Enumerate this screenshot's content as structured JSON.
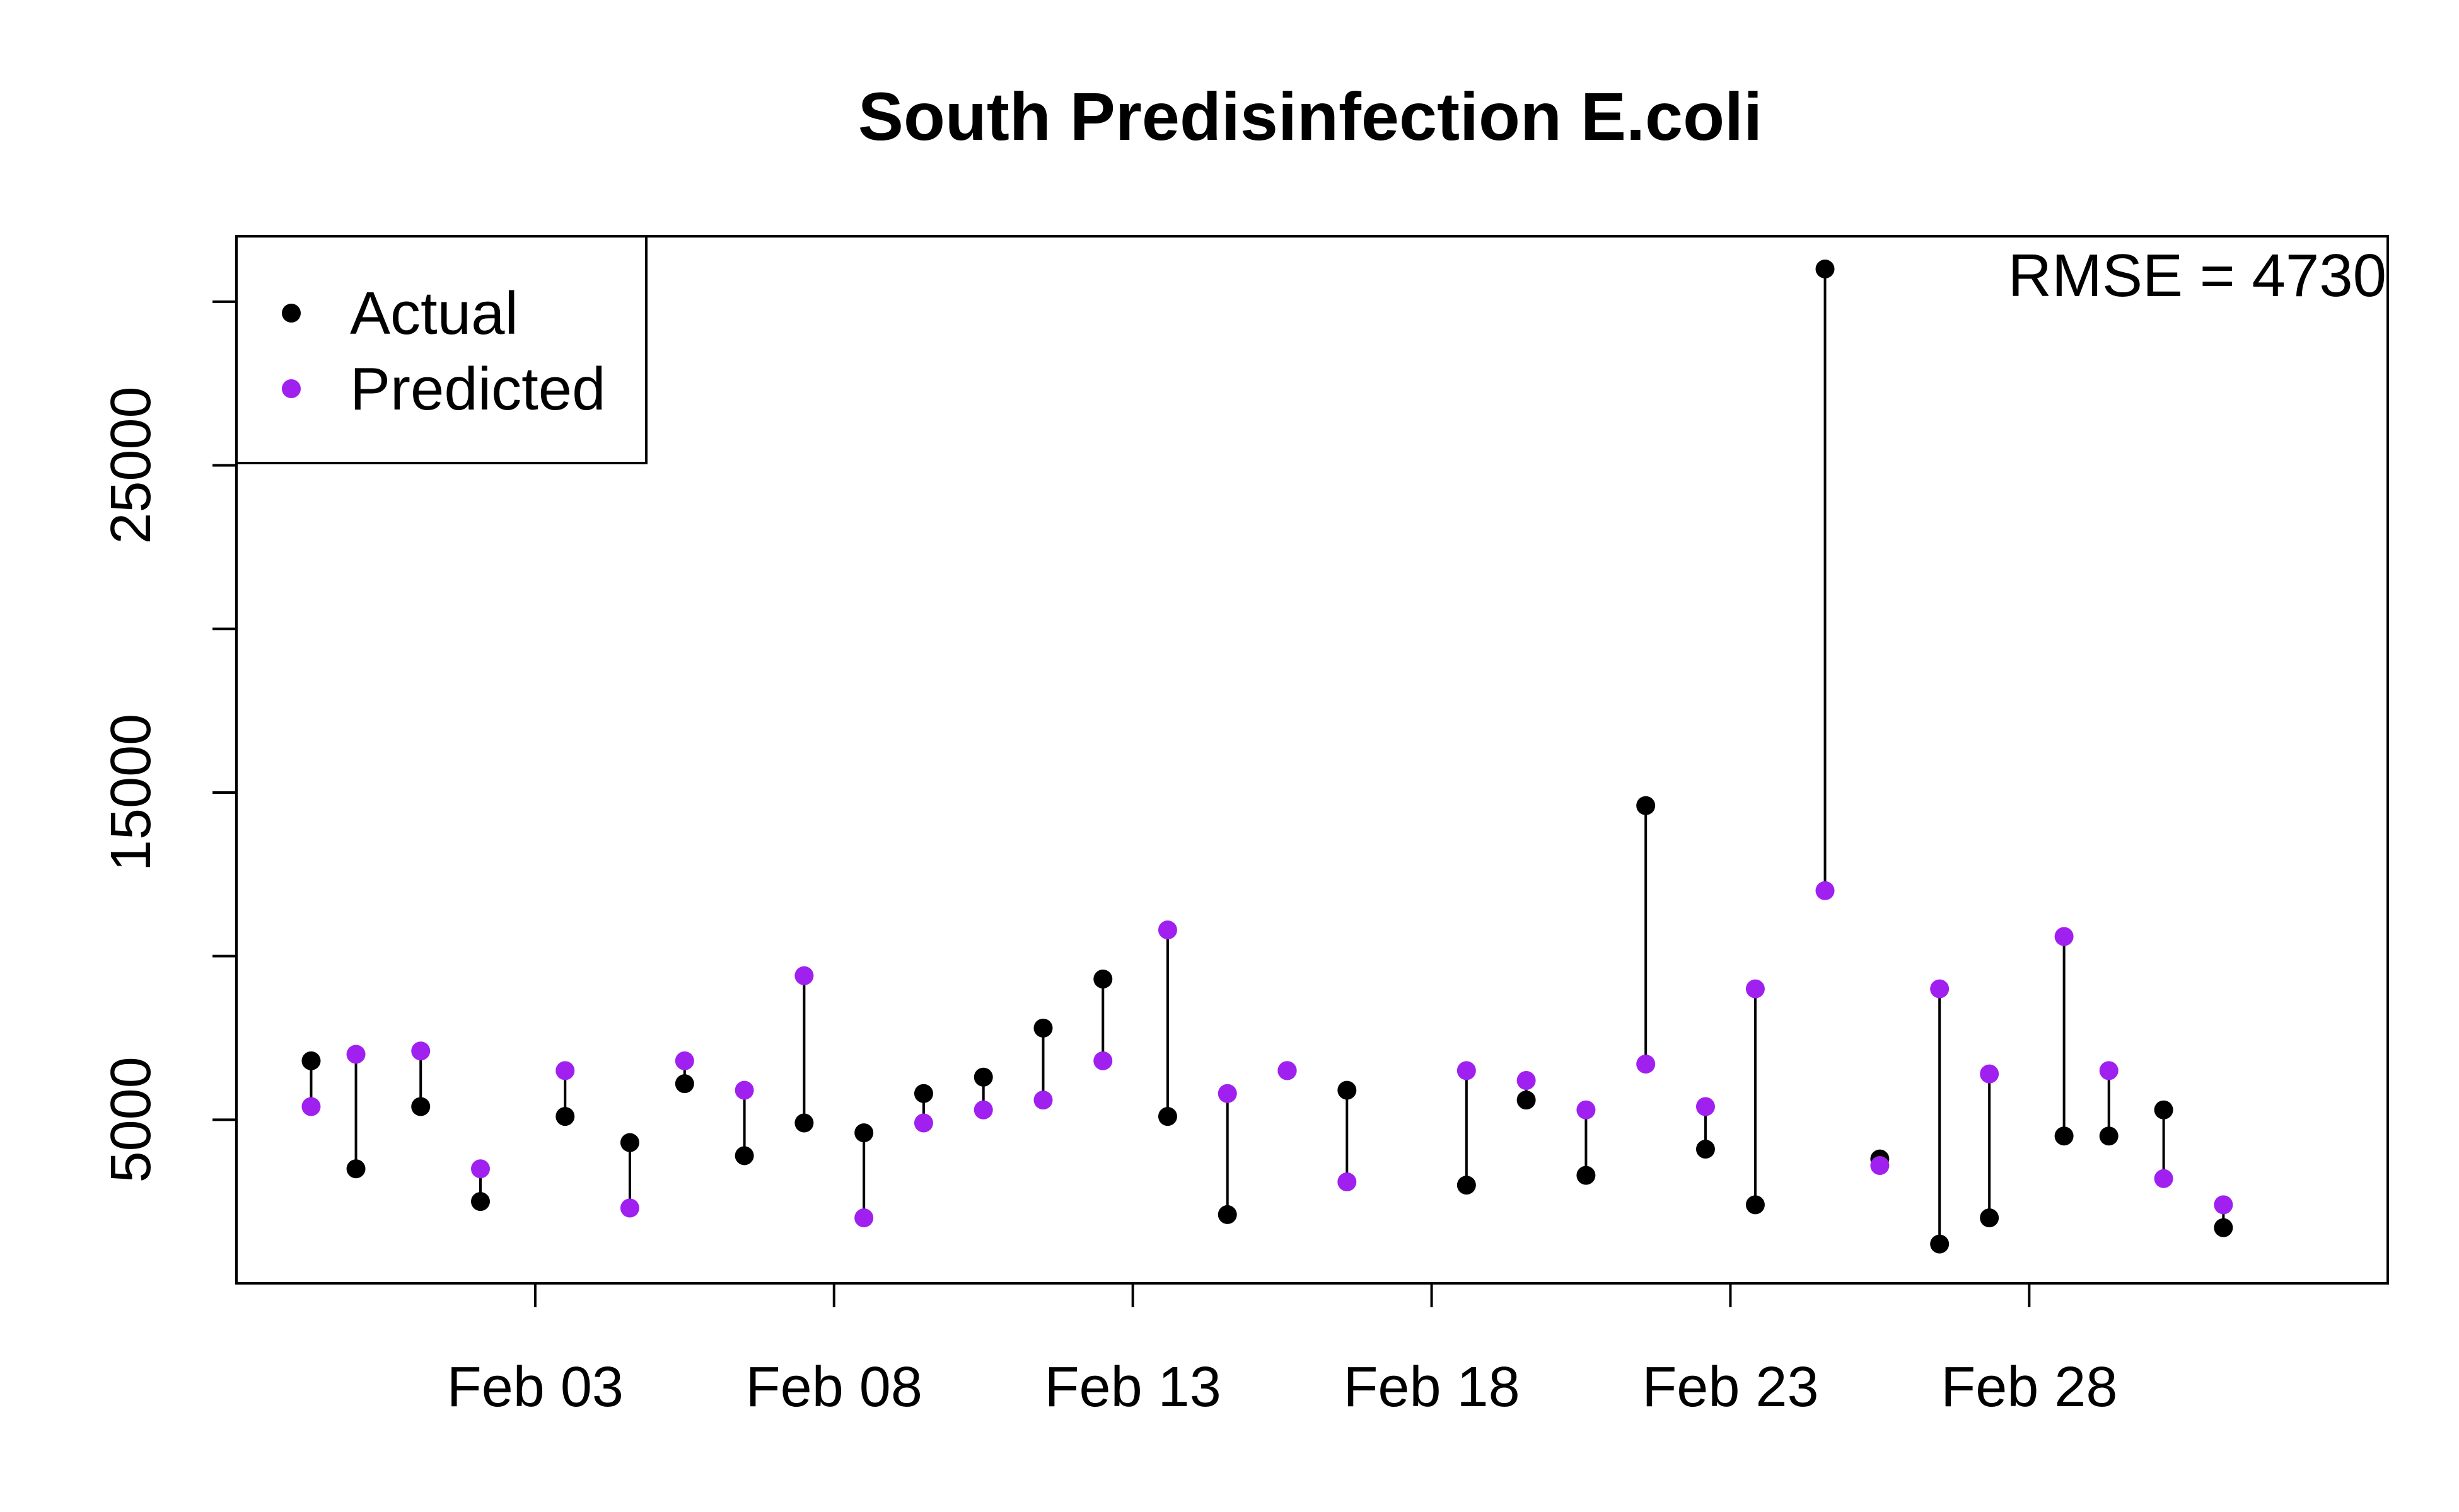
{
  "chart_data": {
    "type": "scatter",
    "title": "South Predisinfection E.coli",
    "xlabel": "",
    "ylabel": "",
    "x_ticks": [
      {
        "date": "2021-02-03",
        "label": "Feb 03"
      },
      {
        "date": "2021-02-08",
        "label": "Feb 08"
      },
      {
        "date": "2021-02-13",
        "label": "Feb 13"
      },
      {
        "date": "2021-02-18",
        "label": "Feb 18"
      },
      {
        "date": "2021-02-23",
        "label": "Feb 23"
      },
      {
        "date": "2021-02-28",
        "label": "Feb 28"
      }
    ],
    "y_ticks": [
      5000,
      10000,
      15000,
      20000,
      25000,
      30000
    ],
    "y_tick_labels": [
      "5000",
      "",
      "15000",
      "",
      "25000",
      ""
    ],
    "xlim": [
      "2021-01-29",
      "2021-03-06"
    ],
    "ylim": [
      0,
      32000
    ],
    "grid": false,
    "legend": {
      "position": "top-left",
      "entries": [
        {
          "label": "Actual",
          "color": "#000000"
        },
        {
          "label": "Predicted",
          "color": "#A020F0"
        }
      ]
    },
    "annotation": "RMSE = 4730",
    "colors": {
      "actual": "#000000",
      "predicted": "#A020F0",
      "segment": "#000000"
    },
    "points": [
      {
        "date": "2021-01-30T06:00",
        "actual": 6800,
        "predicted": 5400
      },
      {
        "date": "2021-01-31T00:00",
        "actual": 3500,
        "predicted": 7000
      },
      {
        "date": "2021-02-01T02:00",
        "actual": 5400,
        "predicted": 7100
      },
      {
        "date": "2021-02-02T02:00",
        "actual": 2500,
        "predicted": 3500
      },
      {
        "date": "2021-02-03T12:00",
        "actual": 5100,
        "predicted": 6500
      },
      {
        "date": "2021-02-04T14:00",
        "actual": 4300,
        "predicted": 2300
      },
      {
        "date": "2021-02-05T12:00",
        "actual": 6100,
        "predicted": 6800
      },
      {
        "date": "2021-02-06T12:00",
        "actual": 3900,
        "predicted": 5900
      },
      {
        "date": "2021-02-07T12:00",
        "actual": 4900,
        "predicted": 9400
      },
      {
        "date": "2021-02-08T12:00",
        "actual": 4600,
        "predicted": 2000
      },
      {
        "date": "2021-02-09T12:00",
        "actual": 5800,
        "predicted": 4900
      },
      {
        "date": "2021-02-10T12:00",
        "actual": 6300,
        "predicted": 5300
      },
      {
        "date": "2021-02-11T12:00",
        "actual": 7800,
        "predicted": 5600
      },
      {
        "date": "2021-02-12T12:00",
        "actual": 9300,
        "predicted": 6800
      },
      {
        "date": "2021-02-13T14:00",
        "actual": 5100,
        "predicted": 10800
      },
      {
        "date": "2021-02-14T14:00",
        "actual": 2100,
        "predicted": 5800
      },
      {
        "date": "2021-02-15T14:00",
        "actual": 6500,
        "predicted": 6500
      },
      {
        "date": "2021-02-16T14:00",
        "actual": 5900,
        "predicted": 3100
      },
      {
        "date": "2021-02-18T14:00",
        "actual": 3000,
        "predicted": 6500
      },
      {
        "date": "2021-02-19T14:00",
        "actual": 5600,
        "predicted": 6200
      },
      {
        "date": "2021-02-20T14:00",
        "actual": 3300,
        "predicted": 5300
      },
      {
        "date": "2021-02-21T14:00",
        "actual": 14600,
        "predicted": 6700
      },
      {
        "date": "2021-02-22T14:00",
        "actual": 4100,
        "predicted": 5400
      },
      {
        "date": "2021-02-23T10:00",
        "actual": 2400,
        "predicted": 9000
      },
      {
        "date": "2021-02-24T14:00",
        "actual": 31000,
        "predicted": 12000
      },
      {
        "date": "2021-02-25T12:00",
        "actual": 3800,
        "predicted": 3600
      },
      {
        "date": "2021-02-26T12:00",
        "actual": 1200,
        "predicted": 9000
      },
      {
        "date": "2021-02-27T08:00",
        "actual": 2000,
        "predicted": 6400
      },
      {
        "date": "2021-02-28T14:00",
        "actual": 4500,
        "predicted": 10600
      },
      {
        "date": "2021-03-01T08:00",
        "actual": 4500,
        "predicted": 6500
      },
      {
        "date": "2021-03-02T06:00",
        "actual": 5300,
        "predicted": 3200
      },
      {
        "date": "2021-03-03T06:00",
        "actual": 1700,
        "predicted": 2400
      }
    ]
  }
}
